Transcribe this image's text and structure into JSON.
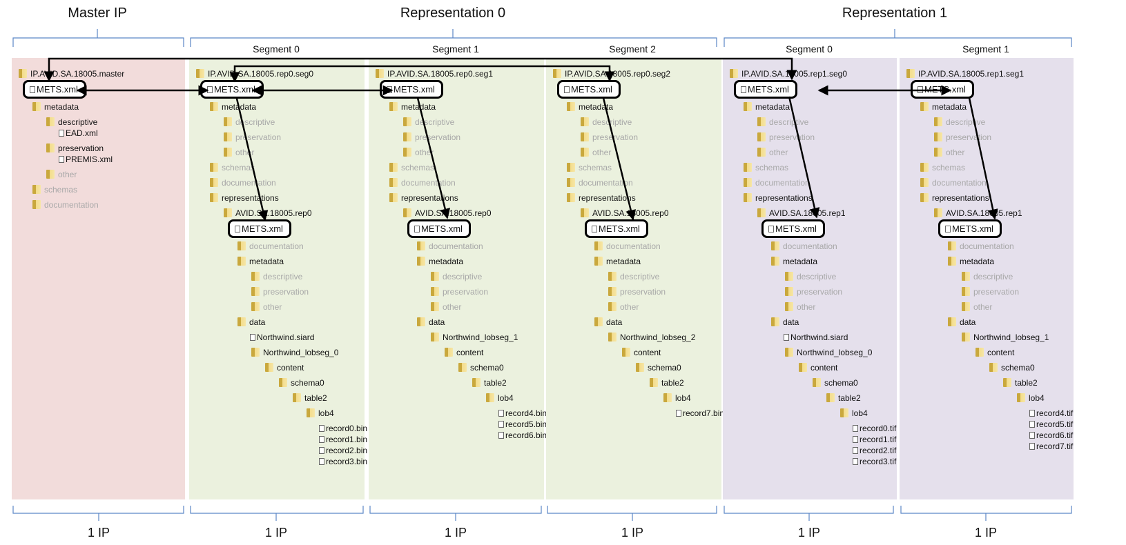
{
  "headings": {
    "master": "Master IP",
    "rep0": "Representation 0",
    "rep1": "Representation 1"
  },
  "columns": [
    {
      "segment": "",
      "ip_count": "1 IP",
      "bg": "#f2dcdb",
      "nodes": [
        {
          "type": "folder",
          "label": "IP.AVID.SA.18005.master",
          "depth": 0
        },
        {
          "type": "mets",
          "label": "METS.xml",
          "depth": 0
        },
        {
          "type": "folder",
          "label": "metadata",
          "depth": 1
        },
        {
          "type": "folder",
          "label": "descriptive",
          "depth": 2
        },
        {
          "type": "file",
          "label": "EAD.xml",
          "depth": 3
        },
        {
          "type": "folder",
          "label": "preservation",
          "depth": 2
        },
        {
          "type": "file",
          "label": "PREMIS.xml",
          "depth": 3
        },
        {
          "type": "folder",
          "label": "other",
          "depth": 2,
          "faded": true
        },
        {
          "type": "folder",
          "label": "schemas",
          "depth": 1,
          "faded": true
        },
        {
          "type": "folder",
          "label": "documentation",
          "depth": 1,
          "faded": true
        }
      ]
    },
    {
      "segment": "Segment 0",
      "ip_count": "1 IP",
      "bg": "#ebf1de",
      "nodes": [
        {
          "type": "folder",
          "label": "IP.AVID.SA.18005.rep0.seg0",
          "depth": 0
        },
        {
          "type": "mets",
          "label": "METS.xml",
          "depth": 0
        },
        {
          "type": "folder",
          "label": "metadata",
          "depth": 1
        },
        {
          "type": "folder",
          "label": "descriptive",
          "depth": 2,
          "faded": true
        },
        {
          "type": "folder",
          "label": "preservation",
          "depth": 2,
          "faded": true
        },
        {
          "type": "folder",
          "label": "other",
          "depth": 2,
          "faded": true
        },
        {
          "type": "folder",
          "label": "schemas",
          "depth": 1,
          "faded": true
        },
        {
          "type": "folder",
          "label": "documentation",
          "depth": 1,
          "faded": true
        },
        {
          "type": "folder",
          "label": "representations",
          "depth": 1
        },
        {
          "type": "folder",
          "label": "AVID.SA.18005.rep0",
          "depth": 2
        },
        {
          "type": "mets",
          "label": "METS.xml",
          "depth": 2
        },
        {
          "type": "folder",
          "label": "documentation",
          "depth": 3,
          "faded": true
        },
        {
          "type": "folder",
          "label": "metadata",
          "depth": 3
        },
        {
          "type": "folder",
          "label": "descriptive",
          "depth": 4,
          "faded": true
        },
        {
          "type": "folder",
          "label": "preservation",
          "depth": 4,
          "faded": true
        },
        {
          "type": "folder",
          "label": "other",
          "depth": 4,
          "faded": true
        },
        {
          "type": "folder",
          "label": "data",
          "depth": 3
        },
        {
          "type": "file",
          "label": "Northwind.siard",
          "depth": 4
        },
        {
          "type": "folder",
          "label": "Northwind_lobseg_0",
          "depth": 4
        },
        {
          "type": "folder",
          "label": "content",
          "depth": 5
        },
        {
          "type": "folder",
          "label": "schema0",
          "depth": 6
        },
        {
          "type": "folder",
          "label": "table2",
          "depth": 7
        },
        {
          "type": "folder",
          "label": "lob4",
          "depth": 8
        },
        {
          "type": "file",
          "label": "record0.bin",
          "depth": 9
        },
        {
          "type": "file",
          "label": "record1.bin",
          "depth": 9
        },
        {
          "type": "file",
          "label": "record2.bin",
          "depth": 9
        },
        {
          "type": "file",
          "label": "record3.bin",
          "depth": 9
        }
      ]
    },
    {
      "segment": "Segment 1",
      "ip_count": "1 IP",
      "bg": "#ebf1de",
      "nodes": [
        {
          "type": "folder",
          "label": "IP.AVID.SA.18005.rep0.seg1",
          "depth": 0
        },
        {
          "type": "mets",
          "label": "METS.xml",
          "depth": 0
        },
        {
          "type": "folder",
          "label": "metadata",
          "depth": 1
        },
        {
          "type": "folder",
          "label": "descriptive",
          "depth": 2,
          "faded": true
        },
        {
          "type": "folder",
          "label": "preservation",
          "depth": 2,
          "faded": true
        },
        {
          "type": "folder",
          "label": "other",
          "depth": 2,
          "faded": true
        },
        {
          "type": "folder",
          "label": "schemas",
          "depth": 1,
          "faded": true
        },
        {
          "type": "folder",
          "label": "documentation",
          "depth": 1,
          "faded": true
        },
        {
          "type": "folder",
          "label": "representations",
          "depth": 1
        },
        {
          "type": "folder",
          "label": "AVID.SA.18005.rep0",
          "depth": 2
        },
        {
          "type": "mets",
          "label": "METS.xml",
          "depth": 2
        },
        {
          "type": "folder",
          "label": "documentation",
          "depth": 3,
          "faded": true
        },
        {
          "type": "folder",
          "label": "metadata",
          "depth": 3
        },
        {
          "type": "folder",
          "label": "descriptive",
          "depth": 4,
          "faded": true
        },
        {
          "type": "folder",
          "label": "preservation",
          "depth": 4,
          "faded": true
        },
        {
          "type": "folder",
          "label": "other",
          "depth": 4,
          "faded": true
        },
        {
          "type": "folder",
          "label": "data",
          "depth": 3
        },
        {
          "type": "folder",
          "label": "Northwind_lobseg_1",
          "depth": 4
        },
        {
          "type": "folder",
          "label": "content",
          "depth": 5
        },
        {
          "type": "folder",
          "label": "schema0",
          "depth": 6
        },
        {
          "type": "folder",
          "label": "table2",
          "depth": 7
        },
        {
          "type": "folder",
          "label": "lob4",
          "depth": 8
        },
        {
          "type": "file",
          "label": "record4.bin",
          "depth": 9
        },
        {
          "type": "file",
          "label": "record5.bin",
          "depth": 9
        },
        {
          "type": "file",
          "label": "record6.bin",
          "depth": 9
        }
      ]
    },
    {
      "segment": "Segment 2",
      "ip_count": "1 IP",
      "bg": "#ebf1de",
      "nodes": [
        {
          "type": "folder",
          "label": "IP.AVID.SA.18005.rep0.seg2",
          "depth": 0
        },
        {
          "type": "mets",
          "label": "METS.xml",
          "depth": 0
        },
        {
          "type": "folder",
          "label": "metadata",
          "depth": 1
        },
        {
          "type": "folder",
          "label": "descriptive",
          "depth": 2,
          "faded": true
        },
        {
          "type": "folder",
          "label": "preservation",
          "depth": 2,
          "faded": true
        },
        {
          "type": "folder",
          "label": "other",
          "depth": 2,
          "faded": true
        },
        {
          "type": "folder",
          "label": "schemas",
          "depth": 1,
          "faded": true
        },
        {
          "type": "folder",
          "label": "documentation",
          "depth": 1,
          "faded": true
        },
        {
          "type": "folder",
          "label": "representations",
          "depth": 1
        },
        {
          "type": "folder",
          "label": "AVID.SA.18005.rep0",
          "depth": 2
        },
        {
          "type": "mets",
          "label": "METS.xml",
          "depth": 2
        },
        {
          "type": "folder",
          "label": "documentation",
          "depth": 3,
          "faded": true
        },
        {
          "type": "folder",
          "label": "metadata",
          "depth": 3
        },
        {
          "type": "folder",
          "label": "descriptive",
          "depth": 4,
          "faded": true
        },
        {
          "type": "folder",
          "label": "preservation",
          "depth": 4,
          "faded": true
        },
        {
          "type": "folder",
          "label": "other",
          "depth": 4,
          "faded": true
        },
        {
          "type": "folder",
          "label": "data",
          "depth": 3
        },
        {
          "type": "folder",
          "label": "Northwind_lobseg_2",
          "depth": 4
        },
        {
          "type": "folder",
          "label": "content",
          "depth": 5
        },
        {
          "type": "folder",
          "label": "schema0",
          "depth": 6
        },
        {
          "type": "folder",
          "label": "table2",
          "depth": 7
        },
        {
          "type": "folder",
          "label": "lob4",
          "depth": 8
        },
        {
          "type": "file",
          "label": "record7.bin",
          "depth": 9
        }
      ]
    },
    {
      "segment": "Segment 0",
      "ip_count": "1 IP",
      "bg": "#e5e0ec",
      "nodes": [
        {
          "type": "folder",
          "label": "IP.AVID.SA.18005.rep1.seg0",
          "depth": 0
        },
        {
          "type": "mets",
          "label": "METS.xml",
          "depth": 0
        },
        {
          "type": "folder",
          "label": "metadata",
          "depth": 1
        },
        {
          "type": "folder",
          "label": "descriptive",
          "depth": 2,
          "faded": true
        },
        {
          "type": "folder",
          "label": "preservation",
          "depth": 2,
          "faded": true
        },
        {
          "type": "folder",
          "label": "other",
          "depth": 2,
          "faded": true
        },
        {
          "type": "folder",
          "label": "schemas",
          "depth": 1,
          "faded": true
        },
        {
          "type": "folder",
          "label": "documentation",
          "depth": 1,
          "faded": true
        },
        {
          "type": "folder",
          "label": "representations",
          "depth": 1
        },
        {
          "type": "folder",
          "label": "AVID.SA.18005.rep1",
          "depth": 2
        },
        {
          "type": "mets",
          "label": "METS.xml",
          "depth": 2
        },
        {
          "type": "folder",
          "label": "documentation",
          "depth": 3,
          "faded": true
        },
        {
          "type": "folder",
          "label": "metadata",
          "depth": 3
        },
        {
          "type": "folder",
          "label": "descriptive",
          "depth": 4,
          "faded": true
        },
        {
          "type": "folder",
          "label": "preservation",
          "depth": 4,
          "faded": true
        },
        {
          "type": "folder",
          "label": "other",
          "depth": 4,
          "faded": true
        },
        {
          "type": "folder",
          "label": "data",
          "depth": 3
        },
        {
          "type": "file",
          "label": "Northwind.siard",
          "depth": 4
        },
        {
          "type": "folder",
          "label": "Northwind_lobseg_0",
          "depth": 4
        },
        {
          "type": "folder",
          "label": "content",
          "depth": 5
        },
        {
          "type": "folder",
          "label": "schema0",
          "depth": 6
        },
        {
          "type": "folder",
          "label": "table2",
          "depth": 7
        },
        {
          "type": "folder",
          "label": "lob4",
          "depth": 8
        },
        {
          "type": "file",
          "label": "record0.tif",
          "depth": 9
        },
        {
          "type": "file",
          "label": "record1.tif",
          "depth": 9
        },
        {
          "type": "file",
          "label": "record2.tif",
          "depth": 9
        },
        {
          "type": "file",
          "label": "record3.tif",
          "depth": 9
        }
      ]
    },
    {
      "segment": "Segment 1",
      "ip_count": "1 IP",
      "bg": "#e5e0ec",
      "nodes": [
        {
          "type": "folder",
          "label": "IP.AVID.SA.18005.rep1.seg1",
          "depth": 0
        },
        {
          "type": "mets",
          "label": "METS.xml",
          "depth": 0
        },
        {
          "type": "folder",
          "label": "metadata",
          "depth": 1
        },
        {
          "type": "folder",
          "label": "descriptive",
          "depth": 2,
          "faded": true
        },
        {
          "type": "folder",
          "label": "preservation",
          "depth": 2,
          "faded": true
        },
        {
          "type": "folder",
          "label": "other",
          "depth": 2,
          "faded": true
        },
        {
          "type": "folder",
          "label": "schemas",
          "depth": 1,
          "faded": true
        },
        {
          "type": "folder",
          "label": "documentation",
          "depth": 1,
          "faded": true
        },
        {
          "type": "folder",
          "label": "representations",
          "depth": 1
        },
        {
          "type": "folder",
          "label": "AVID.SA.18005.rep1",
          "depth": 2
        },
        {
          "type": "mets",
          "label": "METS.xml",
          "depth": 2
        },
        {
          "type": "folder",
          "label": "documentation",
          "depth": 3,
          "faded": true
        },
        {
          "type": "folder",
          "label": "metadata",
          "depth": 3
        },
        {
          "type": "folder",
          "label": "descriptive",
          "depth": 4,
          "faded": true
        },
        {
          "type": "folder",
          "label": "preservation",
          "depth": 4,
          "faded": true
        },
        {
          "type": "folder",
          "label": "other",
          "depth": 4,
          "faded": true
        },
        {
          "type": "folder",
          "label": "data",
          "depth": 3
        },
        {
          "type": "folder",
          "label": "Northwind_lobseg_1",
          "depth": 4
        },
        {
          "type": "folder",
          "label": "content",
          "depth": 5
        },
        {
          "type": "folder",
          "label": "schema0",
          "depth": 6
        },
        {
          "type": "folder",
          "label": "table2",
          "depth": 7
        },
        {
          "type": "folder",
          "label": "lob4",
          "depth": 8
        },
        {
          "type": "file",
          "label": "record4.tif",
          "depth": 9
        },
        {
          "type": "file",
          "label": "record5.tif",
          "depth": 9
        },
        {
          "type": "file",
          "label": "record6.tif",
          "depth": 9
        },
        {
          "type": "file",
          "label": "record7.tif",
          "depth": 9
        }
      ]
    }
  ]
}
